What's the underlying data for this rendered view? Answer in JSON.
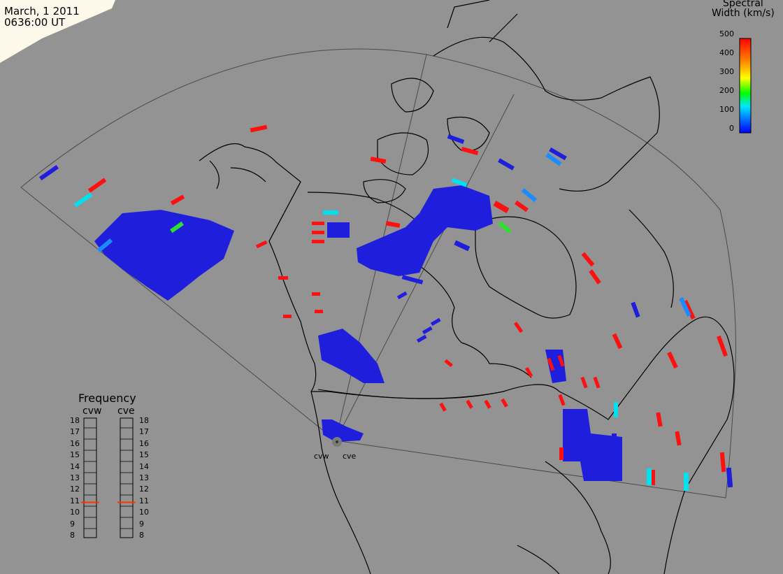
{
  "header": {
    "date": "March, 1 2011",
    "time": "0636:00 UT"
  },
  "colorbar": {
    "title_line1": "Spectral",
    "title_line2": "Width (km/s)",
    "ticks": [
      "500",
      "400",
      "300",
      "200",
      "100",
      "0"
    ],
    "range": [
      0,
      500
    ],
    "gradient": [
      "#0000ff",
      "#0078ff",
      "#00e6ff",
      "#00ff00",
      "#ffff00",
      "#ff8c00",
      "#ff0000"
    ]
  },
  "frequency_panel": {
    "title": "Frequency",
    "radar_labels": [
      "cvw",
      "cve"
    ],
    "scale": [
      "18",
      "17",
      "16",
      "15",
      "14",
      "13",
      "12",
      "11",
      "10",
      "9",
      "8"
    ],
    "marker_color": "#ff3300",
    "cvw_marker_mhz": 10.9,
    "cve_marker_mhz": 10.9
  },
  "stations": [
    "cvw",
    "cve"
  ],
  "map": {
    "background": "#939393",
    "land_outline": "#000000",
    "fov_outline": "#555555"
  }
}
